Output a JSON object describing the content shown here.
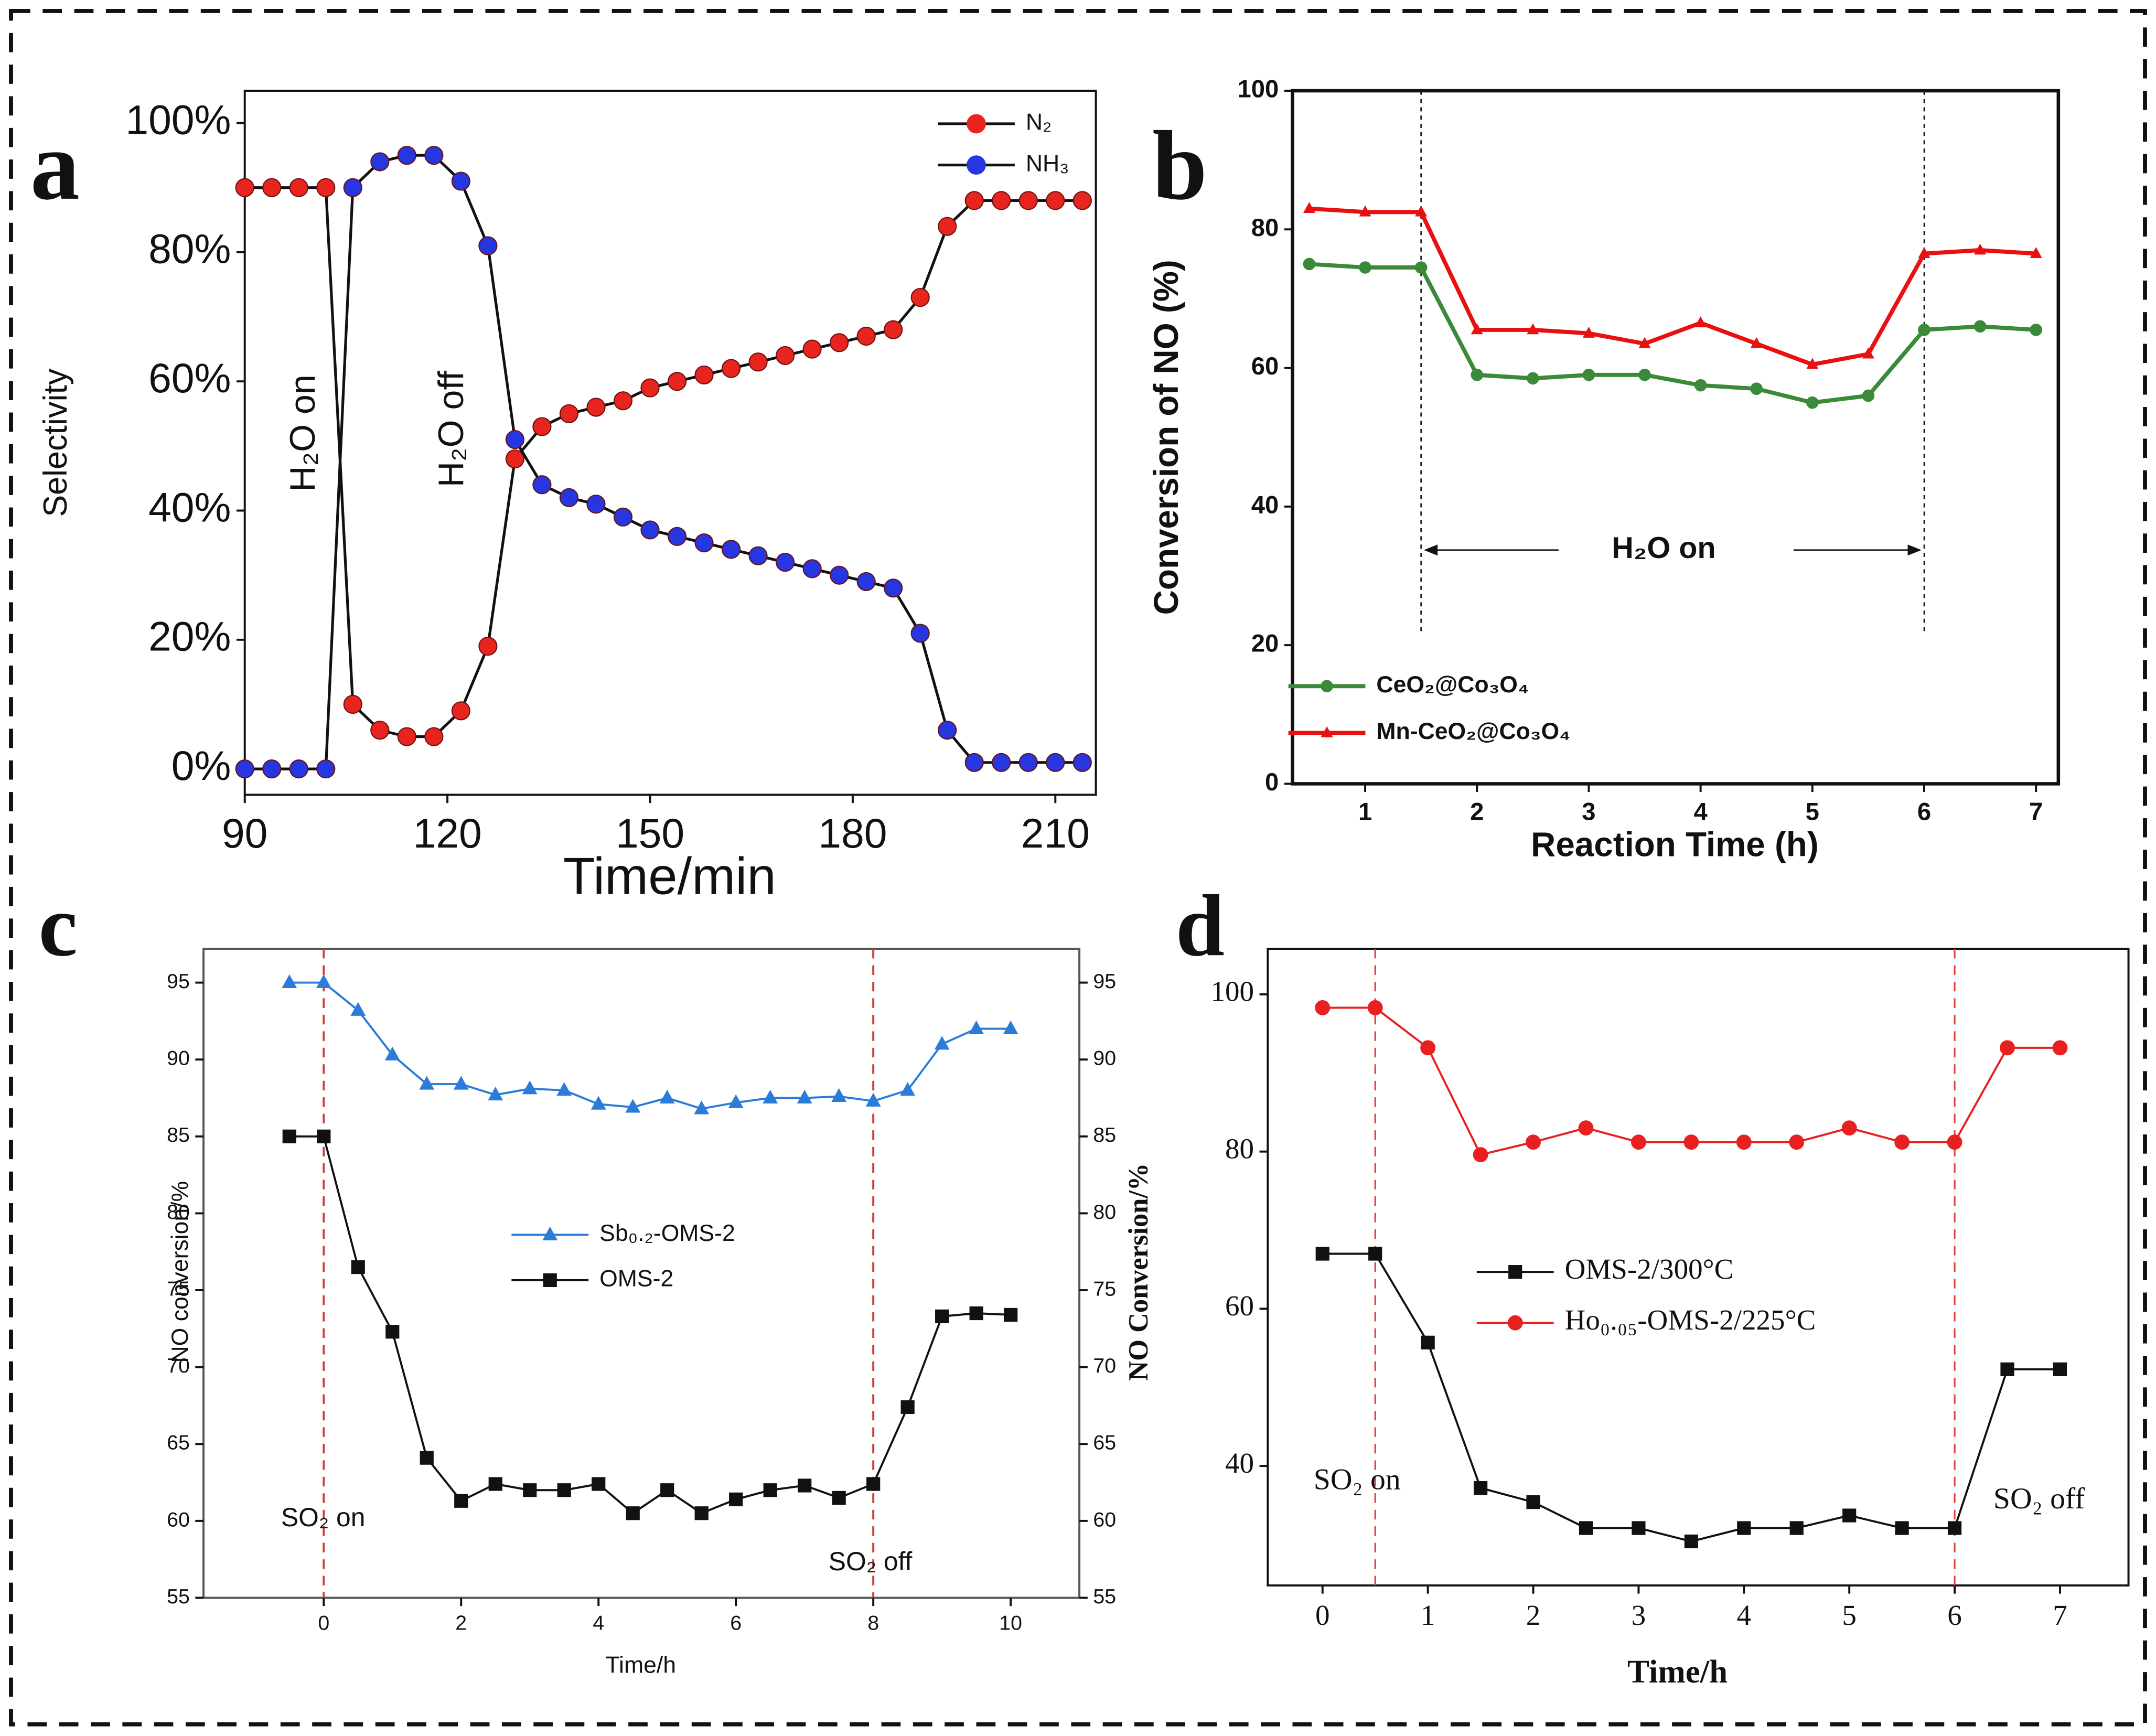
{
  "chart_data": [
    {
      "type": "line",
      "panel": "a",
      "xlabel": "Time/min",
      "ylabel": "Selectivity",
      "annotations": [
        "H₂O on",
        "H₂O off"
      ],
      "xlim": [
        90,
        216
      ],
      "xticks": [
        90,
        120,
        150,
        180,
        210
      ],
      "ylim": [
        -4,
        105
      ],
      "yticks": [
        {
          "value": 0,
          "label": "0%"
        },
        {
          "value": 20,
          "label": "20%"
        },
        {
          "value": 40,
          "label": "40%"
        },
        {
          "value": 60,
          "label": "60%"
        },
        {
          "value": 80,
          "label": "80%"
        },
        {
          "value": 100,
          "label": "100%"
        }
      ],
      "legend": "upper right",
      "line_color": "#111111",
      "x": [
        90,
        94,
        98,
        102,
        106,
        110,
        114,
        118,
        122,
        126,
        130,
        134,
        138,
        142,
        146,
        150,
        154,
        158,
        162,
        166,
        170,
        174,
        178,
        182,
        186,
        190,
        194,
        198,
        202,
        206,
        210,
        214
      ],
      "series": [
        {
          "name": "N₂",
          "color": "#e8241f",
          "marker": "circle",
          "values": [
            90,
            90,
            90,
            90,
            10,
            6,
            5,
            5,
            9,
            19,
            48,
            53,
            55,
            56,
            57,
            59,
            60,
            61,
            62,
            63,
            64,
            65,
            66,
            67,
            68,
            73,
            84,
            88,
            88,
            88,
            88,
            88
          ]
        },
        {
          "name": "NH₃",
          "color": "#2636e0",
          "marker": "circle",
          "values": [
            0,
            0,
            0,
            0,
            90,
            94,
            95,
            95,
            91,
            81,
            51,
            44,
            42,
            41,
            39,
            37,
            36,
            35,
            34,
            33,
            32,
            31,
            30,
            29,
            28,
            21,
            6,
            1,
            1,
            1,
            1,
            1
          ]
        }
      ]
    },
    {
      "type": "line",
      "panel": "b",
      "xlabel": "Reaction Time (h)",
      "ylabel": "Conversion of NO (%)",
      "annotations": [
        "H₂O  on"
      ],
      "event_lines": [
        1.5,
        6
      ],
      "xlim": [
        0.35,
        7.2
      ],
      "xticks": [
        1,
        2,
        3,
        4,
        5,
        6,
        7
      ],
      "ylim": [
        0,
        100
      ],
      "yticks": [
        0,
        20,
        40,
        60,
        80,
        100
      ],
      "legend": "lower left",
      "x": [
        0.5,
        1,
        1.5,
        2,
        2.5,
        3,
        3.5,
        4,
        4.5,
        5,
        5.5,
        6,
        6.5,
        7
      ],
      "series": [
        {
          "name": "CeO₂@Co₃O₄",
          "color": "#3a8a3a",
          "marker": "circle",
          "values": [
            75,
            74.5,
            74.5,
            59,
            58.5,
            59,
            59,
            57.5,
            57,
            55,
            56,
            65.5,
            66,
            65.5
          ]
        },
        {
          "name": "Mn-CeO₂@Co₃O₄",
          "color": "#e81010",
          "marker": "triangle",
          "values": [
            83,
            82.5,
            82.5,
            65.5,
            65.5,
            65,
            63.5,
            66.5,
            63.5,
            60.5,
            62,
            76.5,
            77,
            76.5
          ]
        }
      ]
    },
    {
      "type": "line",
      "panel": "c",
      "xlabel": "Time/h",
      "ylabel": "NO conversion/%",
      "y2label": "NO Conversion/%",
      "annotations": [
        "SO₂ on",
        "SO₂ off"
      ],
      "event_lines": [
        0,
        8
      ],
      "xlim": [
        -1.75,
        11
      ],
      "xticks": [
        0,
        2,
        4,
        6,
        8,
        10
      ],
      "ylim": [
        55,
        97.2
      ],
      "yticks": [
        55,
        60,
        65,
        70,
        75,
        80,
        85,
        90,
        95
      ],
      "y2lim": [
        55,
        97.2
      ],
      "y2ticks": [
        55,
        60,
        65,
        70,
        75,
        80,
        85,
        90,
        95
      ],
      "legend": "center",
      "x": [
        -0.5,
        0,
        0.5,
        1,
        1.5,
        2,
        2.5,
        3,
        3.5,
        4,
        4.5,
        5,
        5.5,
        6,
        6.5,
        7,
        7.5,
        8,
        8.5,
        9,
        9.5,
        10
      ],
      "series": [
        {
          "name": "Sb₀.₂-OMS-2",
          "color": "#2b7bd9",
          "marker": "triangle",
          "values": [
            95,
            95,
            93.2,
            90.3,
            88.4,
            88.4,
            87.7,
            88.1,
            88,
            87.1,
            86.9,
            87.5,
            86.8,
            87.2,
            87.5,
            87.5,
            87.6,
            87.3,
            88,
            91,
            92,
            92
          ]
        },
        {
          "name": "OMS-2",
          "color": "#111111",
          "marker": "square",
          "values": [
            85,
            85,
            76.5,
            72.3,
            64.1,
            61.3,
            62.4,
            62,
            62,
            62.4,
            60.5,
            62,
            60.5,
            61.4,
            62,
            62.3,
            61.5,
            62.4,
            67.4,
            73.3,
            73.5,
            73.4
          ]
        }
      ]
    },
    {
      "type": "line",
      "panel": "d",
      "xlabel": "Time/h",
      "annotations": [
        "SO₂ on",
        "SO₂ off"
      ],
      "event_lines": [
        0.5,
        6
      ],
      "xlim": [
        -0.52,
        7.65
      ],
      "xticks": [
        0,
        1,
        2,
        3,
        4,
        5,
        6,
        7
      ],
      "ylim": [
        24.8,
        105.8
      ],
      "yticks": [
        40,
        60,
        80,
        100
      ],
      "legend": "center",
      "x": [
        0,
        0.5,
        1,
        1.5,
        2,
        2.5,
        3,
        3.5,
        4,
        4.5,
        5,
        5.5,
        6,
        6.5,
        7
      ],
      "series": [
        {
          "name": "OMS-2/300°C",
          "color": "#111111",
          "marker": "square",
          "values": [
            67,
            67,
            55.7,
            37.2,
            35.4,
            32.1,
            32.1,
            30.4,
            32.1,
            32.1,
            33.7,
            32.1,
            32.1,
            52.3,
            52.3
          ]
        },
        {
          "name": "Ho₀.₀₅-OMS-2/225°C",
          "color": "#e82020",
          "marker": "circle",
          "values": [
            98.3,
            98.3,
            93.2,
            79.6,
            81.2,
            83,
            81.2,
            81.2,
            81.2,
            81.2,
            83,
            81.2,
            81.2,
            93.2,
            93.2
          ]
        }
      ]
    }
  ]
}
